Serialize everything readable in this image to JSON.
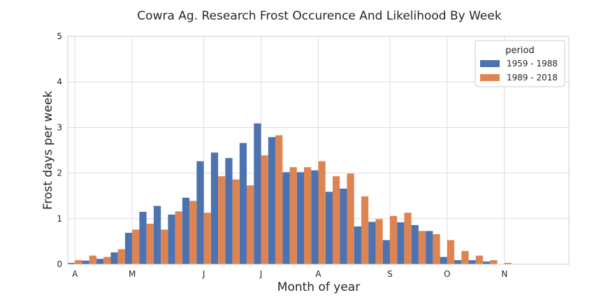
{
  "chart_data": {
    "type": "bar",
    "title": "Cowra Ag. Research Frost Occurence And Likelihood By Week",
    "xlabel": "Month of year",
    "ylabel": "Frost days per week",
    "ylim": [
      0,
      5
    ],
    "yticks": [
      "0",
      "1",
      "2",
      "3",
      "4",
      "5"
    ],
    "xticks": [
      {
        "label": "A",
        "week": 0
      },
      {
        "label": "M",
        "week": 4
      },
      {
        "label": "J",
        "week": 9
      },
      {
        "label": "J",
        "week": 13
      },
      {
        "label": "A",
        "week": 17
      },
      {
        "label": "S",
        "week": 22
      },
      {
        "label": "O",
        "week": 26
      },
      {
        "label": "N",
        "week": 30
      }
    ],
    "xlim": [
      -0.5,
      34.5
    ],
    "grid": true,
    "legend": {
      "title": "period",
      "position": "top-right"
    },
    "weeks": [
      0,
      1,
      2,
      3,
      4,
      5,
      6,
      7,
      8,
      9,
      10,
      11,
      12,
      13,
      14,
      15,
      16,
      17,
      18,
      19,
      20,
      21,
      22,
      23,
      24,
      25,
      26,
      27,
      28,
      29,
      30,
      31,
      32,
      33
    ],
    "series": [
      {
        "name": "1959 - 1988",
        "color": "#4c72b0",
        "values": [
          0.03,
          0.08,
          0.12,
          0.26,
          0.69,
          1.15,
          1.28,
          1.09,
          1.46,
          2.26,
          2.45,
          2.33,
          2.66,
          3.09,
          2.79,
          2.02,
          2.02,
          2.06,
          1.59,
          1.66,
          0.83,
          0.93,
          0.53,
          0.92,
          0.86,
          0.73,
          0.16,
          0.09,
          0.09,
          0.06,
          0,
          0,
          0,
          0
        ]
      },
      {
        "name": "1989 - 2018",
        "color": "#dd8452",
        "values": [
          0.09,
          0.19,
          0.16,
          0.33,
          0.76,
          0.89,
          0.76,
          1.16,
          1.39,
          1.13,
          1.93,
          1.86,
          1.73,
          2.39,
          2.83,
          2.13,
          2.13,
          2.26,
          1.93,
          1.99,
          1.49,
          0.99,
          1.06,
          1.13,
          0.73,
          0.66,
          0.53,
          0.29,
          0.19,
          0.09,
          0.03,
          0,
          0,
          0
        ]
      }
    ]
  }
}
